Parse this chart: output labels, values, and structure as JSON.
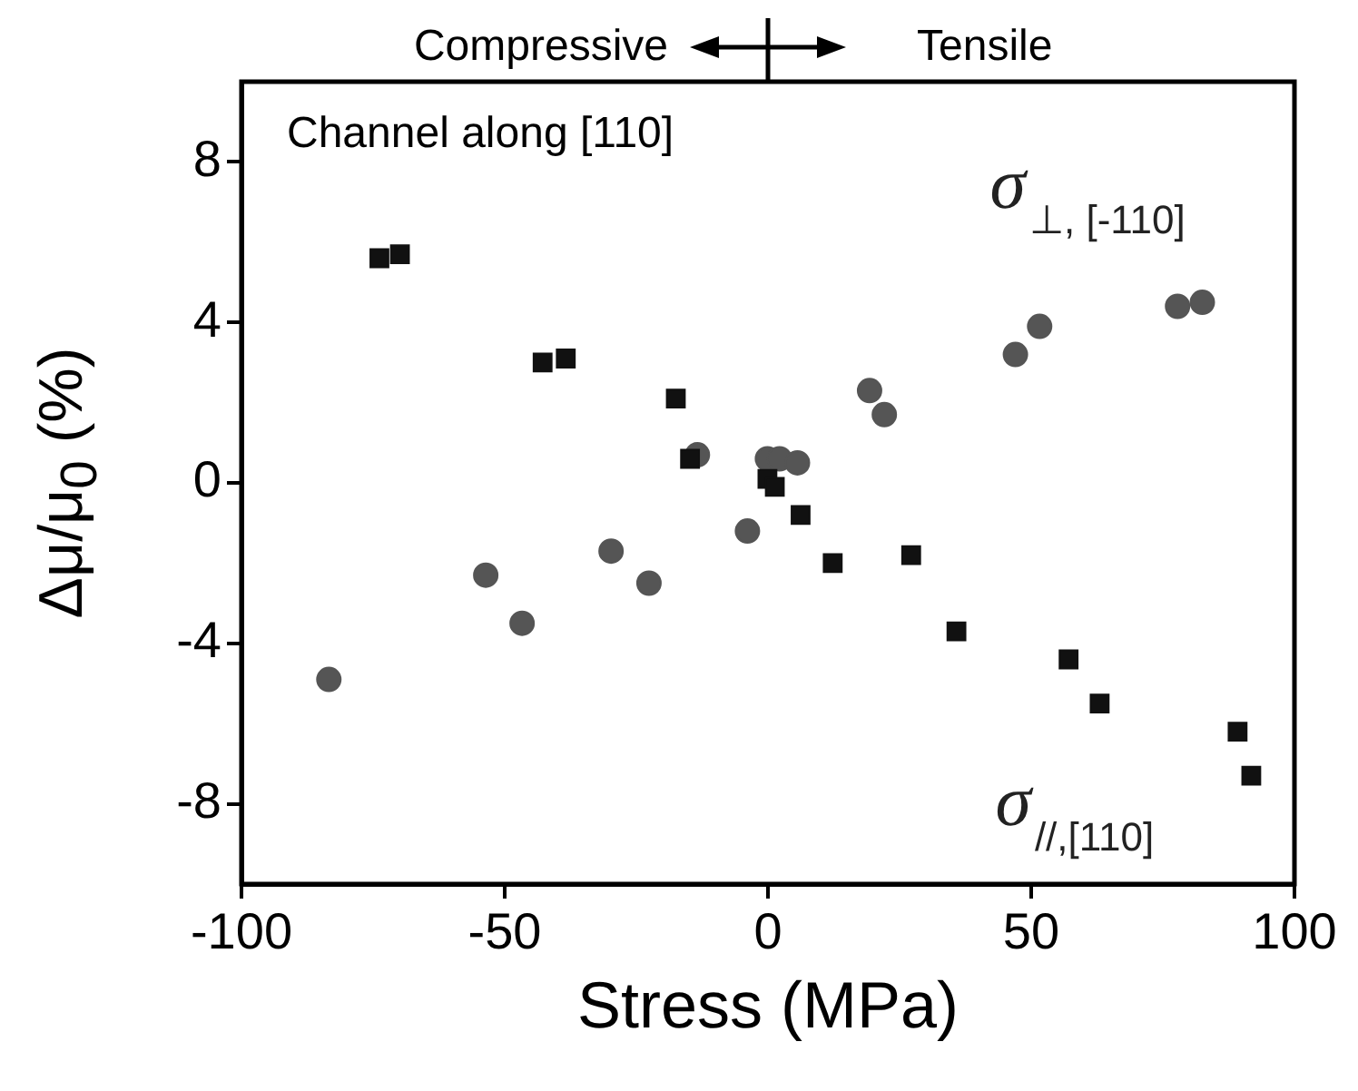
{
  "chart_data": {
    "type": "scatter",
    "xlabel": "Stress (MPa)",
    "ylabel": "Δμ/μ$_{0}$ (%)",
    "annotations": [
      "Compressive",
      "Tensile",
      "Channel along [110]"
    ],
    "xlim": [
      -100,
      100
    ],
    "xticks": [
      -100,
      -50,
      0,
      50,
      100
    ],
    "ylim": [
      -10,
      10
    ],
    "yticks": [
      -8,
      -4,
      0,
      4,
      8
    ],
    "grid": false,
    "legend": false,
    "series": [
      {
        "name": "σ$_{⊥, [-110]}$",
        "color": "#555555",
        "marker": "circle",
        "x": [
          -83.4,
          -53.6,
          -46.7,
          -29.8,
          -22.6,
          -13.4,
          -3.9,
          -0.1,
          2.2,
          5.6,
          19.3,
          22.1,
          47.0,
          51.6,
          77.8,
          82.5
        ],
        "values": [
          -4.9,
          -2.3,
          -3.5,
          -1.7,
          -2.5,
          0.7,
          -1.2,
          0.6,
          0.6,
          0.5,
          2.3,
          1.7,
          3.2,
          3.9,
          4.4,
          4.5
        ]
      },
      {
        "name": "σ$_{//,[110]}$",
        "color": "#111111",
        "marker": "square",
        "x": [
          -73.8,
          -69.9,
          -42.8,
          -38.4,
          -17.5,
          -14.8,
          -0.1,
          1.3,
          6.2,
          12.3,
          27.2,
          35.8,
          57.1,
          63.0,
          89.2,
          91.8
        ],
        "values": [
          5.6,
          5.7,
          3.0,
          3.1,
          2.1,
          0.6,
          0.1,
          -0.1,
          -0.8,
          -2.0,
          -1.8,
          -3.7,
          -4.4,
          -5.5,
          -6.2,
          -7.3
        ]
      }
    ]
  }
}
